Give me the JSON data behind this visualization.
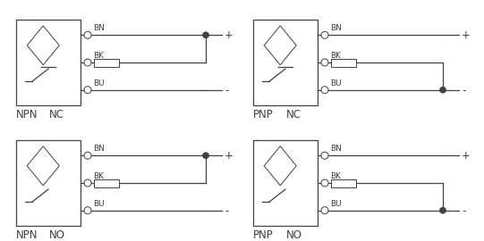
{
  "background_color": "#ffffff",
  "line_color": "#404040",
  "lw": 0.9,
  "font_size": 6.5,
  "label_font_size": 8.5,
  "diagrams": [
    {
      "label": "NPN",
      "mode_label": "NO",
      "col": 0,
      "row": 1,
      "type": "NPN",
      "mode": "NO"
    },
    {
      "label": "PNP",
      "mode_label": "NO",
      "col": 1,
      "row": 1,
      "type": "PNP",
      "mode": "NO"
    },
    {
      "label": "NPN",
      "mode_label": "NC",
      "col": 0,
      "row": 0,
      "type": "NPN",
      "mode": "NC"
    },
    {
      "label": "PNP",
      "mode_label": "NC",
      "col": 1,
      "row": 0,
      "type": "PNP",
      "mode": "NC"
    }
  ]
}
